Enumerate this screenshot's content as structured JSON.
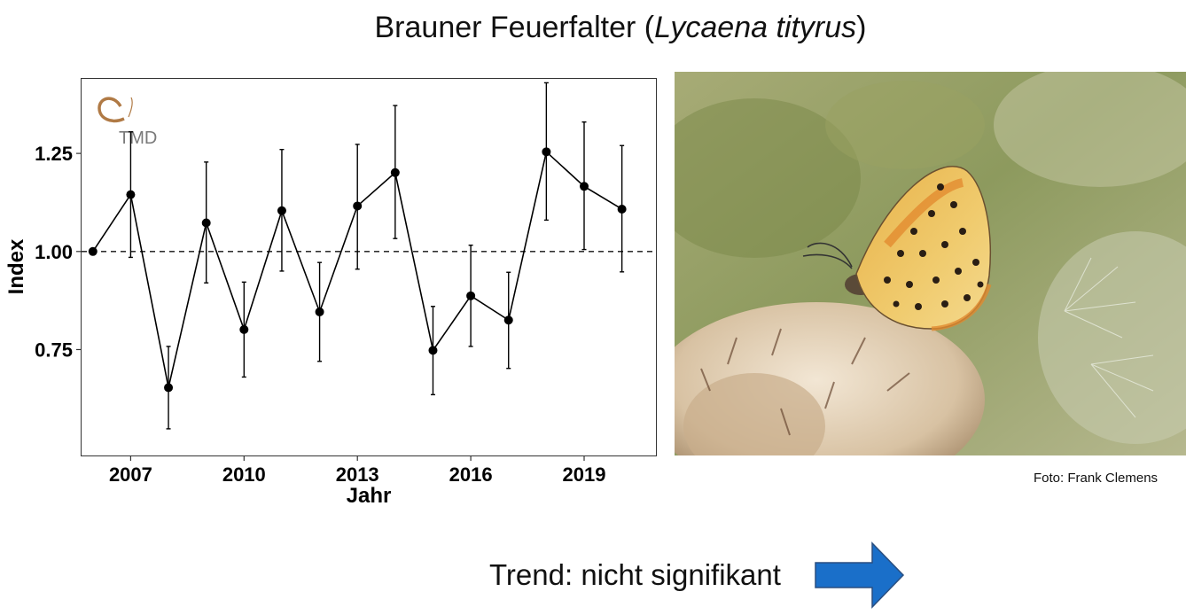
{
  "title": {
    "common_name": "Brauner Feuerfalter",
    "paren_open": "(",
    "latin_name": "Lycaena tityrus",
    "paren_close": ")"
  },
  "logo": {
    "text": "TMD"
  },
  "photo": {
    "credit": "Foto: Frank Clemens"
  },
  "trend": {
    "label": "Trend: nicht signifikant",
    "arrow_direction": "right",
    "arrow_color": "#1a6fc9"
  },
  "chart_data": {
    "type": "line",
    "xlabel": "Jahr",
    "ylabel": "Index",
    "xlim": [
      2005.7,
      2020.9
    ],
    "ylim": [
      0.48,
      1.44
    ],
    "x_ticks": [
      2007,
      2010,
      2013,
      2016,
      2019
    ],
    "y_ticks": [
      0.75,
      1.0,
      1.25
    ],
    "y_tick_labels": [
      "0.75",
      "1.00",
      "1.25"
    ],
    "reference_line": {
      "y": 1.0,
      "style": "dashed"
    },
    "grid": false,
    "series": [
      {
        "x": [
          2006,
          2007,
          2008,
          2009,
          2010,
          2011,
          2012,
          2013,
          2014,
          2015,
          2016,
          2017,
          2018,
          2019,
          2020
        ],
        "y": [
          1.0,
          1.145,
          0.653,
          1.073,
          0.801,
          1.104,
          0.846,
          1.116,
          1.201,
          0.748,
          0.887,
          0.825,
          1.254,
          1.166,
          1.108
        ],
        "y_lower": [
          null,
          0.985,
          0.548,
          0.92,
          0.68,
          0.95,
          0.72,
          0.955,
          1.033,
          0.635,
          0.758,
          0.702,
          1.08,
          1.005,
          0.948
        ],
        "y_upper": [
          null,
          1.305,
          0.758,
          1.228,
          0.922,
          1.26,
          0.972,
          1.273,
          1.372,
          0.86,
          1.016,
          0.947,
          1.43,
          1.33,
          1.27
        ]
      }
    ]
  }
}
